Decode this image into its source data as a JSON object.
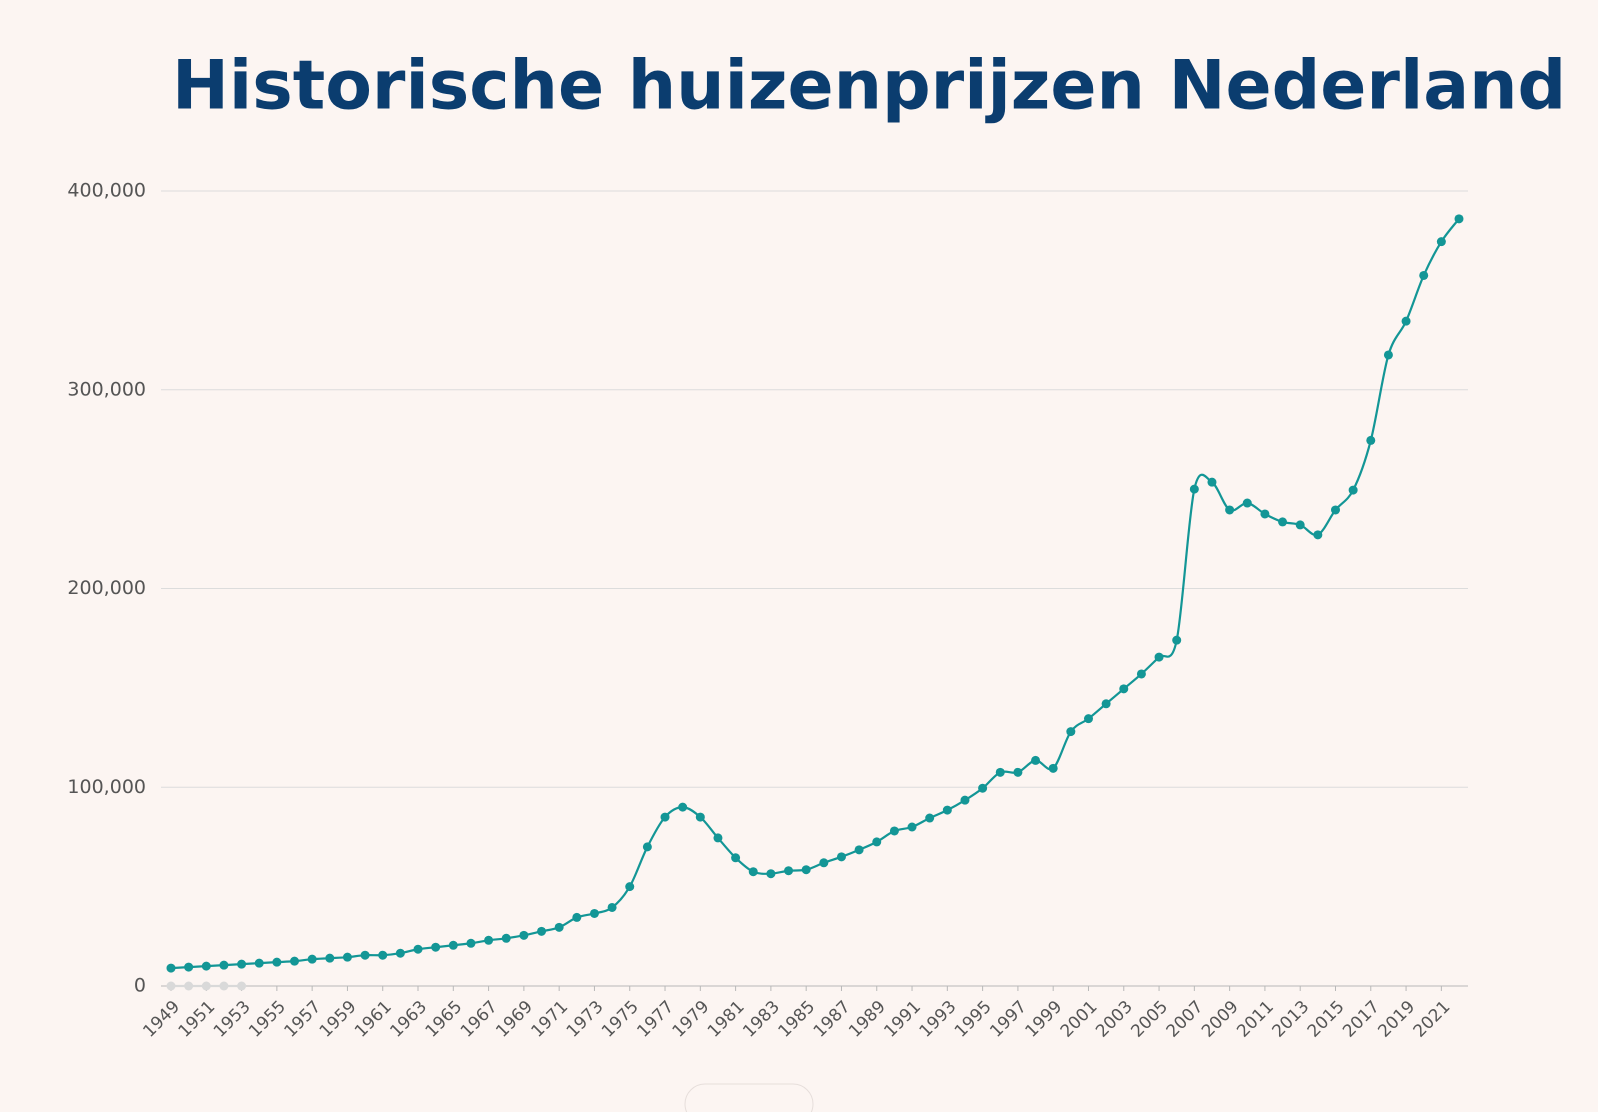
{
  "chart_data": {
    "type": "line",
    "title": "Historische huizenprijzen Nederland",
    "x": [
      1949,
      1950,
      1951,
      1952,
      1953,
      1954,
      1955,
      1956,
      1957,
      1958,
      1959,
      1960,
      1961,
      1962,
      1963,
      1964,
      1965,
      1966,
      1967,
      1968,
      1969,
      1970,
      1971,
      1972,
      1973,
      1974,
      1975,
      1976,
      1977,
      1978,
      1979,
      1980,
      1981,
      1982,
      1983,
      1984,
      1985,
      1986,
      1987,
      1988,
      1989,
      1990,
      1991,
      1992,
      1993,
      1994,
      1995,
      1996,
      1997,
      1998,
      1999,
      2000,
      2001,
      2002,
      2003,
      2004,
      2005,
      2006,
      2007,
      2008,
      2009,
      2010,
      2011,
      2012,
      2013,
      2014,
      2015,
      2016,
      2017,
      2018,
      2019,
      2020,
      2021,
      2022
    ],
    "series": [
      {
        "color": "#139696",
        "values": [
          9000,
          9500,
          10000,
          10500,
          11000,
          11500,
          12000,
          12500,
          13500,
          14000,
          14500,
          15500,
          15500,
          16500,
          18500,
          19500,
          20500,
          21500,
          23000,
          24000,
          25500,
          27500,
          29500,
          34500,
          36500,
          39500,
          50000,
          70000,
          85000,
          90000,
          85000,
          74500,
          64500,
          57500,
          56500,
          58000,
          58500,
          62000,
          65000,
          68500,
          72500,
          78000,
          80000,
          84500,
          88500,
          93500,
          99500,
          107500,
          107500,
          113500,
          109500,
          128000,
          134500,
          142000,
          149500,
          157000,
          165500,
          174000,
          250000,
          253500,
          239500,
          243000,
          237500,
          233500,
          232000,
          227000,
          239500,
          249500,
          274500,
          317500,
          334500,
          357500,
          374500,
          386000
        ]
      },
      {
        "color": "#d9d9d9",
        "values": [
          0,
          0,
          0,
          0,
          0,
          null,
          null,
          null,
          null,
          null,
          null,
          null,
          null,
          null,
          null,
          null,
          null,
          null,
          null,
          null,
          null,
          null,
          null,
          null,
          null,
          null,
          null,
          null,
          null,
          null,
          null,
          null,
          null,
          null,
          null,
          null,
          null,
          null,
          null,
          null,
          null,
          null,
          null,
          null,
          null,
          null,
          null,
          null,
          null,
          null,
          null,
          null,
          null,
          null,
          null,
          null,
          null,
          null,
          null,
          null,
          null,
          null,
          null,
          null,
          null,
          null,
          null,
          null,
          null,
          null,
          null,
          null,
          null,
          null
        ]
      }
    ],
    "xlim": [
      1949,
      2022
    ],
    "xticks": [
      1949,
      1951,
      1953,
      1955,
      1957,
      1959,
      1961,
      1963,
      1965,
      1967,
      1969,
      1971,
      1973,
      1975,
      1977,
      1979,
      1981,
      1983,
      1985,
      1987,
      1989,
      1991,
      1993,
      1995,
      1997,
      1999,
      2001,
      2003,
      2005,
      2007,
      2009,
      2011,
      2013,
      2015,
      2017,
      2019,
      2021
    ],
    "ylim": [
      0,
      400000
    ],
    "yticks": [
      0,
      {
        "value": 100000,
        "label": "100,000"
      },
      {
        "value": 200000,
        "label": "200,000"
      },
      {
        "value": 300000,
        "label": "300,000"
      },
      {
        "value": 400000,
        "label": "400,000"
      }
    ],
    "grid": true
  }
}
